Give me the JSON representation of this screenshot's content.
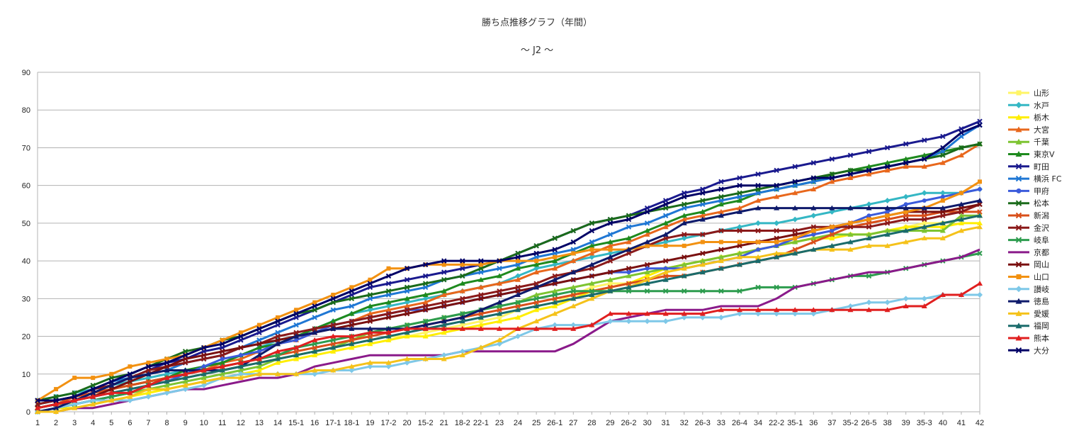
{
  "chart_data": {
    "type": "line",
    "title": "勝ち点推移グラフ（年間）",
    "subtitle": "～ J2 ～",
    "xlabel": "",
    "ylabel": "",
    "ylim": [
      0,
      90
    ],
    "yticks": [
      0,
      10,
      20,
      30,
      40,
      50,
      60,
      70,
      80,
      90
    ],
    "grid": true,
    "legend_position": "right",
    "categories": [
      "1",
      "2",
      "3",
      "4",
      "5",
      "6",
      "7",
      "8",
      "9",
      "10",
      "11",
      "12",
      "13",
      "14",
      "15-1",
      "16",
      "17-1",
      "18-1",
      "19",
      "17-2",
      "20",
      "15-2",
      "21",
      "18-2",
      "22-1",
      "23",
      "24",
      "25",
      "26-1",
      "27",
      "28",
      "29",
      "26-2",
      "30",
      "31",
      "32",
      "26-3",
      "33",
      "26-4",
      "34",
      "22-2",
      "35-1",
      "36",
      "37",
      "35-2",
      "26-5",
      "38",
      "39",
      "35-3",
      "40",
      "41",
      "42"
    ],
    "series": [
      {
        "name": "山形",
        "color": "#fff566",
        "marker": "square",
        "values": [
          1,
          2,
          2,
          3,
          4,
          5,
          7,
          8,
          9,
          10,
          11,
          12,
          13,
          14,
          15,
          16,
          17,
          18,
          19,
          20,
          20,
          21,
          22,
          23,
          24,
          25,
          27,
          28,
          29,
          31,
          33,
          34,
          34,
          36,
          38,
          39,
          40,
          41,
          42,
          43,
          44,
          45,
          46,
          46,
          47,
          47,
          48,
          49,
          50,
          50,
          51,
          52
        ]
      },
      {
        "name": "水戸",
        "color": "#34b7c4",
        "marker": "diamond",
        "values": [
          3,
          4,
          5,
          6,
          7,
          8,
          9,
          10,
          11,
          12,
          13,
          15,
          17,
          19,
          20,
          22,
          24,
          26,
          27,
          28,
          29,
          30,
          31,
          32,
          33,
          34,
          36,
          38,
          39,
          40,
          41,
          42,
          43,
          44,
          45,
          46,
          47,
          48,
          49,
          50,
          50,
          51,
          52,
          53,
          54,
          55,
          56,
          57,
          58,
          58,
          58,
          59
        ]
      },
      {
        "name": "栃木",
        "color": "#ffee00",
        "marker": "triangle",
        "values": [
          0,
          1,
          1,
          2,
          3,
          4,
          5,
          6,
          7,
          8,
          9,
          10,
          11,
          13,
          14,
          15,
          16,
          17,
          18,
          19,
          20,
          20,
          21,
          22,
          23,
          24,
          25,
          27,
          28,
          30,
          32,
          33,
          34,
          36,
          38,
          39,
          40,
          41,
          42,
          43,
          44,
          45,
          46,
          46,
          47,
          47,
          48,
          49,
          49,
          49,
          50,
          50
        ]
      },
      {
        "name": "大宮",
        "color": "#e8671c",
        "marker": "triangle",
        "values": [
          1,
          2,
          3,
          4,
          6,
          7,
          8,
          9,
          10,
          11,
          13,
          14,
          16,
          18,
          19,
          21,
          23,
          24,
          26,
          27,
          28,
          29,
          31,
          32,
          33,
          34,
          35,
          37,
          38,
          40,
          42,
          44,
          45,
          47,
          49,
          51,
          52,
          53,
          54,
          56,
          57,
          58,
          59,
          61,
          62,
          63,
          64,
          65,
          65,
          66,
          68,
          71
        ]
      },
      {
        "name": "千葉",
        "color": "#7dc431",
        "marker": "triangle",
        "values": [
          0,
          1,
          2,
          3,
          4,
          5,
          6,
          7,
          8,
          9,
          10,
          11,
          12,
          14,
          15,
          16,
          17,
          19,
          21,
          22,
          23,
          24,
          25,
          26,
          27,
          28,
          29,
          31,
          32,
          33,
          34,
          35,
          36,
          37,
          38,
          39,
          40,
          41,
          42,
          43,
          44,
          45,
          46,
          47,
          47,
          47,
          48,
          48,
          48,
          48,
          52,
          52
        ]
      },
      {
        "name": "東京V",
        "color": "#1e8a1e",
        "marker": "triangle",
        "values": [
          2,
          3,
          4,
          5,
          6,
          7,
          8,
          9,
          11,
          12,
          13,
          15,
          17,
          18,
          20,
          22,
          24,
          26,
          28,
          29,
          30,
          31,
          32,
          34,
          35,
          36,
          38,
          39,
          40,
          42,
          44,
          45,
          46,
          48,
          50,
          52,
          53,
          55,
          56,
          58,
          59,
          60,
          61,
          63,
          64,
          65,
          66,
          67,
          68,
          69,
          70,
          71
        ]
      },
      {
        "name": "町田",
        "color": "#1a1a8e",
        "marker": "cross",
        "values": [
          1,
          2,
          3,
          5,
          7,
          9,
          11,
          13,
          14,
          16,
          17,
          19,
          21,
          23,
          25,
          27,
          29,
          31,
          33,
          34,
          35,
          36,
          37,
          38,
          39,
          40,
          42,
          44,
          46,
          48,
          50,
          51,
          52,
          54,
          56,
          58,
          59,
          61,
          62,
          63,
          64,
          65,
          66,
          67,
          68,
          69,
          70,
          71,
          72,
          73,
          75,
          77
        ]
      },
      {
        "name": "横浜 FC",
        "color": "#1f77d4",
        "marker": "cross",
        "values": [
          2,
          3,
          4,
          6,
          8,
          9,
          10,
          11,
          13,
          14,
          15,
          17,
          19,
          21,
          23,
          25,
          27,
          28,
          30,
          31,
          32,
          33,
          35,
          36,
          37,
          38,
          39,
          41,
          42,
          43,
          45,
          47,
          49,
          50,
          52,
          54,
          55,
          56,
          57,
          58,
          59,
          60,
          61,
          62,
          63,
          64,
          65,
          66,
          67,
          69,
          73,
          76
        ]
      },
      {
        "name": "甲府",
        "color": "#3b5bdb",
        "marker": "circle",
        "values": [
          0,
          1,
          2,
          3,
          4,
          5,
          7,
          8,
          10,
          12,
          14,
          15,
          16,
          18,
          19,
          21,
          23,
          24,
          25,
          26,
          27,
          27,
          28,
          29,
          30,
          31,
          32,
          33,
          34,
          35,
          36,
          37,
          37,
          38,
          38,
          38,
          39,
          40,
          41,
          43,
          44,
          46,
          47,
          48,
          50,
          52,
          53,
          55,
          56,
          57,
          58,
          59
        ]
      },
      {
        "name": "松本",
        "color": "#1a6b1a",
        "marker": "cross",
        "values": [
          3,
          4,
          5,
          7,
          9,
          10,
          12,
          14,
          16,
          17,
          19,
          20,
          22,
          24,
          26,
          27,
          29,
          30,
          31,
          32,
          33,
          34,
          35,
          36,
          38,
          40,
          42,
          44,
          46,
          48,
          50,
          51,
          52,
          53,
          54,
          55,
          56,
          57,
          58,
          59,
          60,
          61,
          62,
          63,
          64,
          64,
          65,
          66,
          67,
          68,
          70,
          71
        ]
      },
      {
        "name": "新潟",
        "color": "#d94f1a",
        "marker": "cross",
        "values": [
          1,
          2,
          4,
          5,
          6,
          7,
          8,
          9,
          10,
          11,
          12,
          13,
          14,
          15,
          16,
          17,
          18,
          19,
          20,
          21,
          22,
          23,
          24,
          25,
          26,
          27,
          28,
          29,
          30,
          31,
          32,
          33,
          34,
          35,
          36,
          36,
          37,
          38,
          39,
          40,
          41,
          43,
          45,
          47,
          49,
          50,
          51,
          52,
          52,
          53,
          53,
          53
        ]
      },
      {
        "name": "金沢",
        "color": "#8b1a1a",
        "marker": "cross",
        "values": [
          2,
          3,
          4,
          6,
          7,
          9,
          11,
          12,
          13,
          14,
          15,
          17,
          18,
          20,
          21,
          22,
          23,
          24,
          25,
          26,
          27,
          28,
          29,
          30,
          31,
          32,
          33,
          34,
          36,
          37,
          38,
          40,
          42,
          44,
          46,
          47,
          47,
          48,
          48,
          48,
          48,
          48,
          49,
          49,
          49,
          49,
          50,
          51,
          51,
          52,
          53,
          55
        ]
      },
      {
        "name": "岐阜",
        "color": "#2d9c4e",
        "marker": "cross",
        "values": [
          0,
          1,
          2,
          3,
          4,
          5,
          7,
          9,
          10,
          11,
          12,
          13,
          14,
          15,
          17,
          18,
          19,
          20,
          21,
          22,
          23,
          24,
          25,
          26,
          27,
          28,
          29,
          30,
          31,
          32,
          32,
          32,
          32,
          32,
          32,
          32,
          32,
          32,
          32,
          33,
          33,
          33,
          34,
          35,
          36,
          36,
          37,
          38,
          39,
          40,
          41,
          42
        ]
      },
      {
        "name": "京都",
        "color": "#8a1a8a",
        "marker": "line",
        "values": [
          0,
          0,
          1,
          1,
          2,
          3,
          4,
          5,
          6,
          6,
          7,
          8,
          9,
          9,
          10,
          12,
          13,
          14,
          15,
          15,
          15,
          15,
          15,
          16,
          16,
          16,
          16,
          16,
          16,
          18,
          21,
          24,
          25,
          26,
          27,
          27,
          27,
          28,
          28,
          28,
          30,
          33,
          34,
          35,
          36,
          37,
          37,
          38,
          39,
          40,
          41,
          43
        ]
      },
      {
        "name": "岡山",
        "color": "#7a1010",
        "marker": "cross",
        "values": [
          1,
          2,
          3,
          4,
          6,
          8,
          10,
          12,
          14,
          15,
          16,
          17,
          18,
          19,
          20,
          21,
          22,
          23,
          24,
          25,
          26,
          27,
          28,
          29,
          30,
          31,
          32,
          33,
          34,
          35,
          36,
          37,
          38,
          39,
          40,
          41,
          42,
          43,
          44,
          45,
          46,
          47,
          48,
          49,
          50,
          51,
          52,
          53,
          53,
          53,
          54,
          55
        ]
      },
      {
        "name": "山口",
        "color": "#f29111",
        "marker": "square",
        "values": [
          3,
          6,
          9,
          9,
          10,
          12,
          13,
          14,
          15,
          17,
          19,
          21,
          23,
          25,
          27,
          29,
          31,
          33,
          35,
          38,
          38,
          39,
          39,
          39,
          39,
          40,
          40,
          40,
          41,
          42,
          43,
          43,
          43,
          44,
          44,
          44,
          45,
          45,
          45,
          45,
          45,
          46,
          48,
          49,
          50,
          51,
          52,
          53,
          54,
          56,
          58,
          61
        ]
      },
      {
        "name": "讃岐",
        "color": "#7ec8e8",
        "marker": "diamond",
        "values": [
          0,
          1,
          2,
          3,
          3,
          3,
          4,
          5,
          6,
          7,
          9,
          10,
          10,
          10,
          10,
          10,
          11,
          11,
          12,
          12,
          13,
          14,
          15,
          16,
          17,
          18,
          20,
          22,
          23,
          23,
          23,
          24,
          24,
          24,
          24,
          25,
          25,
          25,
          26,
          26,
          26,
          26,
          26,
          27,
          28,
          29,
          29,
          30,
          30,
          31,
          31,
          31
        ]
      },
      {
        "name": "徳島",
        "color": "#0e1a6b",
        "marker": "triangle",
        "values": [
          0,
          1,
          3,
          5,
          7,
          9,
          10,
          11,
          11,
          11,
          11,
          12,
          15,
          18,
          20,
          21,
          22,
          22,
          22,
          22,
          22,
          23,
          24,
          25,
          27,
          29,
          31,
          33,
          35,
          37,
          39,
          41,
          43,
          45,
          47,
          50,
          51,
          52,
          53,
          54,
          54,
          54,
          54,
          54,
          54,
          54,
          54,
          54,
          54,
          54,
          55,
          56
        ]
      },
      {
        "name": "愛媛",
        "color": "#f5c21a",
        "marker": "triangle",
        "values": [
          0,
          0,
          1,
          2,
          3,
          4,
          6,
          6,
          7,
          8,
          9,
          9,
          10,
          10,
          10,
          11,
          11,
          12,
          13,
          13,
          14,
          14,
          14,
          15,
          17,
          19,
          22,
          24,
          26,
          28,
          30,
          32,
          33,
          35,
          37,
          38,
          39,
          40,
          41,
          41,
          42,
          42,
          43,
          43,
          43,
          44,
          44,
          45,
          46,
          46,
          48,
          49
        ]
      },
      {
        "name": "福岡",
        "color": "#1a6b6b",
        "marker": "triangle",
        "values": [
          1,
          2,
          3,
          4,
          5,
          6,
          7,
          8,
          9,
          10,
          11,
          12,
          13,
          14,
          15,
          16,
          17,
          18,
          19,
          20,
          21,
          22,
          23,
          24,
          25,
          26,
          27,
          28,
          29,
          30,
          31,
          32,
          33,
          34,
          35,
          36,
          37,
          38,
          39,
          40,
          41,
          42,
          43,
          44,
          45,
          46,
          47,
          48,
          49,
          50,
          51,
          52
        ]
      },
      {
        "name": "熊本",
        "color": "#e01f1f",
        "marker": "triangle",
        "values": [
          1,
          2,
          3,
          4,
          5,
          5,
          7,
          9,
          10,
          11,
          12,
          13,
          14,
          16,
          17,
          19,
          20,
          20,
          21,
          21,
          22,
          22,
          22,
          22,
          22,
          22,
          22,
          22,
          22,
          22,
          23,
          26,
          26,
          26,
          26,
          26,
          26,
          27,
          27,
          27,
          27,
          27,
          27,
          27,
          27,
          27,
          27,
          28,
          28,
          31,
          31,
          34
        ]
      },
      {
        "name": "大分",
        "color": "#000066",
        "marker": "cross",
        "values": [
          3,
          3,
          4,
          6,
          8,
          10,
          12,
          13,
          15,
          17,
          18,
          20,
          22,
          24,
          26,
          28,
          30,
          32,
          34,
          36,
          38,
          39,
          40,
          40,
          40,
          40,
          41,
          42,
          43,
          45,
          48,
          50,
          51,
          53,
          55,
          57,
          58,
          59,
          60,
          60,
          60,
          61,
          62,
          62,
          63,
          64,
          65,
          66,
          67,
          70,
          74,
          76
        ]
      }
    ]
  }
}
